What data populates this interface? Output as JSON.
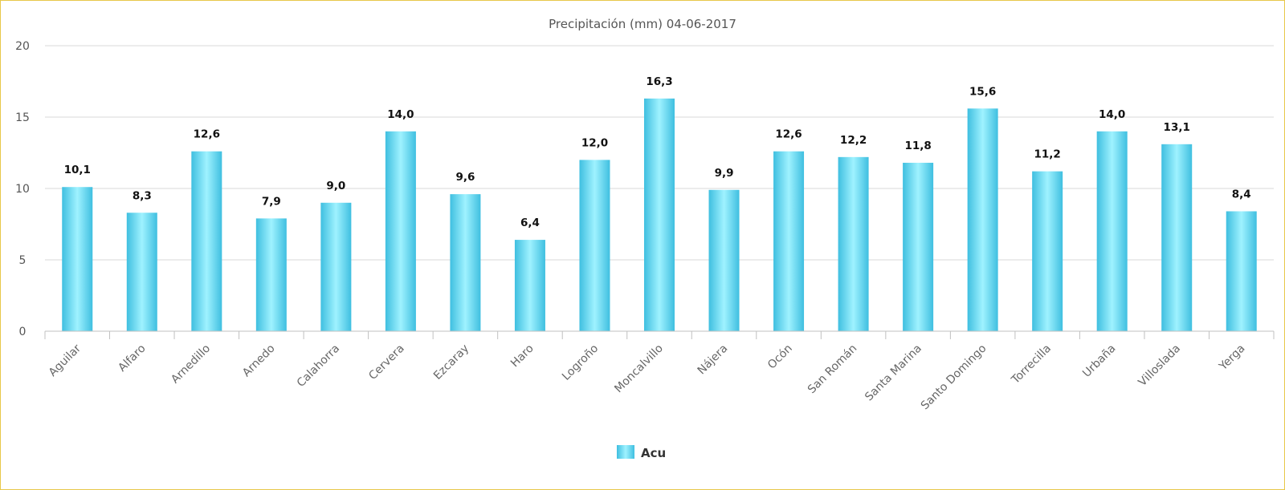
{
  "chart_data": {
    "type": "bar",
    "title": "Precipitación (mm) 04-06-2017",
    "categories": [
      "Aguilar",
      "Alfaro",
      "Arnedillo",
      "Arnedo",
      "Calahorra",
      "Cervera",
      "Ezcaray",
      "Haro",
      "Logroño",
      "Moncalvillo",
      "Nájera",
      "Ocón",
      "San Román",
      "Santa Marina",
      "Santo Domingo",
      "Torrecilla",
      "Urbaña",
      "Villoslada",
      "Yerga"
    ],
    "series": [
      {
        "name": "Acu",
        "values": [
          10.1,
          8.3,
          12.6,
          7.9,
          9.0,
          14.0,
          9.6,
          6.4,
          12.0,
          16.3,
          9.9,
          12.6,
          12.2,
          11.8,
          15.6,
          11.2,
          14.0,
          13.1,
          8.4
        ],
        "labels": [
          "10,1",
          "8,3",
          "12,6",
          "7,9",
          "9,0",
          "14,0",
          "9,6",
          "6,4",
          "12,0",
          "16,3",
          "9,9",
          "12,6",
          "12,2",
          "11,8",
          "15,6",
          "11,2",
          "14,0",
          "13,1",
          "8,4"
        ],
        "color": "#55d0ec"
      }
    ],
    "yticks": [
      "0",
      "5",
      "10",
      "15",
      "20"
    ],
    "ylim": [
      0,
      20
    ],
    "xlabel": "",
    "ylabel": "",
    "grid": true,
    "legend": "bottom-center"
  }
}
